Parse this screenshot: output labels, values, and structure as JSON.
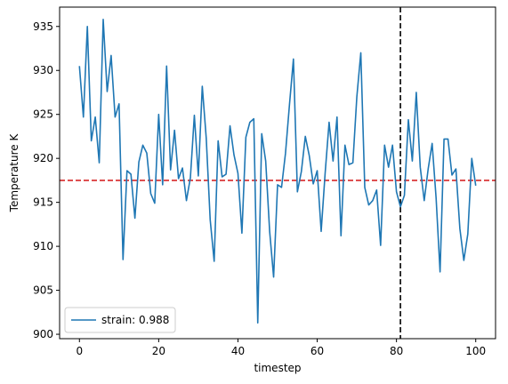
{
  "chart_data": {
    "type": "line",
    "title": "",
    "xlabel": "timestep",
    "ylabel": "Temperature K",
    "xlim": [
      -5,
      105
    ],
    "ylim": [
      899.5,
      937.2
    ],
    "xticks": [
      0,
      20,
      40,
      60,
      80,
      100
    ],
    "yticks": [
      900,
      905,
      910,
      915,
      920,
      925,
      930,
      935
    ],
    "grid": false,
    "legend_position": "lower-left",
    "series": [
      {
        "name": "strain: 0.988",
        "color": "#1f77b4",
        "x": [
          0,
          1,
          2,
          3,
          4,
          5,
          6,
          7,
          8,
          9,
          10,
          11,
          12,
          13,
          14,
          15,
          16,
          17,
          18,
          19,
          20,
          21,
          22,
          23,
          24,
          25,
          26,
          27,
          28,
          29,
          30,
          31,
          32,
          33,
          34,
          35,
          36,
          37,
          38,
          39,
          40,
          41,
          42,
          43,
          44,
          45,
          46,
          47,
          48,
          49,
          50,
          51,
          52,
          53,
          54,
          55,
          56,
          57,
          58,
          59,
          60,
          61,
          62,
          63,
          64,
          65,
          66,
          67,
          68,
          69,
          70,
          71,
          72,
          73,
          74,
          75,
          76,
          77,
          78,
          79,
          80,
          81,
          82,
          83,
          84,
          85,
          86,
          87,
          88,
          89,
          90,
          91,
          92,
          93,
          94,
          95,
          96,
          97,
          98,
          99,
          100
        ],
        "y": [
          930.5,
          924.7,
          935.0,
          922.0,
          924.7,
          919.5,
          935.8,
          927.6,
          931.7,
          924.7,
          926.2,
          908.5,
          918.6,
          918.2,
          913.2,
          919.6,
          921.5,
          920.6,
          916.0,
          914.9,
          925.0,
          917.0,
          930.5,
          918.7,
          923.2,
          917.7,
          918.9,
          915.2,
          917.8,
          924.9,
          918.0,
          928.2,
          922.3,
          913.0,
          908.3,
          922.0,
          917.9,
          918.2,
          923.7,
          920.4,
          918.3,
          911.5,
          922.4,
          924.1,
          924.5,
          901.3,
          922.8,
          919.7,
          911.7,
          906.5,
          917.0,
          916.7,
          920.6,
          926.1,
          931.3,
          916.2,
          918.5,
          922.5,
          920.3,
          917.1,
          918.6,
          911.7,
          918.3,
          924.1,
          919.7,
          924.7,
          911.2,
          921.5,
          919.3,
          919.5,
          927.0,
          932.0,
          916.7,
          914.7,
          915.2,
          916.4,
          910.1,
          921.5,
          919.0,
          921.5,
          916.2,
          914.5,
          915.8,
          924.4,
          919.7,
          927.5,
          919.0,
          915.2,
          918.8,
          921.7,
          915.5,
          907.1,
          922.2,
          922.2,
          918.1,
          918.8,
          912.0,
          908.4,
          911.4,
          920.0,
          916.9
        ]
      }
    ],
    "reference_lines": [
      {
        "orientation": "horizontal",
        "value": 917.5,
        "color": "#d62728",
        "style": "dashed"
      },
      {
        "orientation": "vertical",
        "value": 81,
        "color": "#000000",
        "style": "dashed"
      }
    ]
  }
}
